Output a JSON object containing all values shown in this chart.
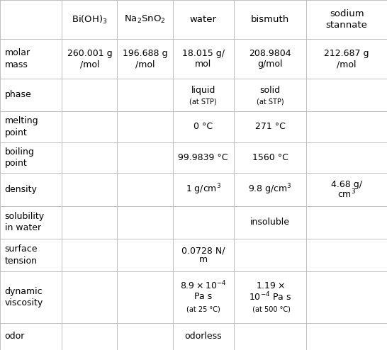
{
  "col_headers": [
    "",
    "Bi(OH)$_3$",
    "Na$_2$SnO$_2$",
    "water",
    "bismuth",
    "sodium\nstannate"
  ],
  "row_labels": [
    "molar\nmass",
    "phase",
    "melting\npoint",
    "boiling\npoint",
    "density",
    "solubility\nin water",
    "surface\ntension",
    "dynamic\nviscosity",
    "odor"
  ],
  "cells": [
    [
      "260.001 g\n/mol",
      "196.688 g\n/mol",
      "18.015 g/\nmol",
      "208.9804\ng/mol",
      "212.687 g\n/mol"
    ],
    [
      "",
      "",
      "liquid\n(at STP)",
      "solid\n(at STP)",
      ""
    ],
    [
      "",
      "",
      "0 °C",
      "271 °C",
      ""
    ],
    [
      "",
      "",
      "99.9839 °C",
      "1560 °C",
      ""
    ],
    [
      "",
      "",
      "1 g/cm$^3$",
      "9.8 g/cm$^3$",
      "4.68 g/\ncm$^3$"
    ],
    [
      "",
      "",
      "",
      "insoluble",
      ""
    ],
    [
      "",
      "",
      "0.0728 N/\nm",
      "",
      ""
    ],
    [
      "",
      "",
      "visc_water",
      "visc_bismuth",
      ""
    ],
    [
      "",
      "",
      "odorless",
      "",
      ""
    ]
  ],
  "bg_color": "#ffffff",
  "line_color": "#c0c0c0",
  "text_color": "#000000",
  "header_fontsize": 9.5,
  "label_fontsize": 9,
  "cell_fontsize": 9,
  "small_fontsize": 7,
  "fig_width": 5.46,
  "fig_height": 4.94,
  "dpi": 100
}
